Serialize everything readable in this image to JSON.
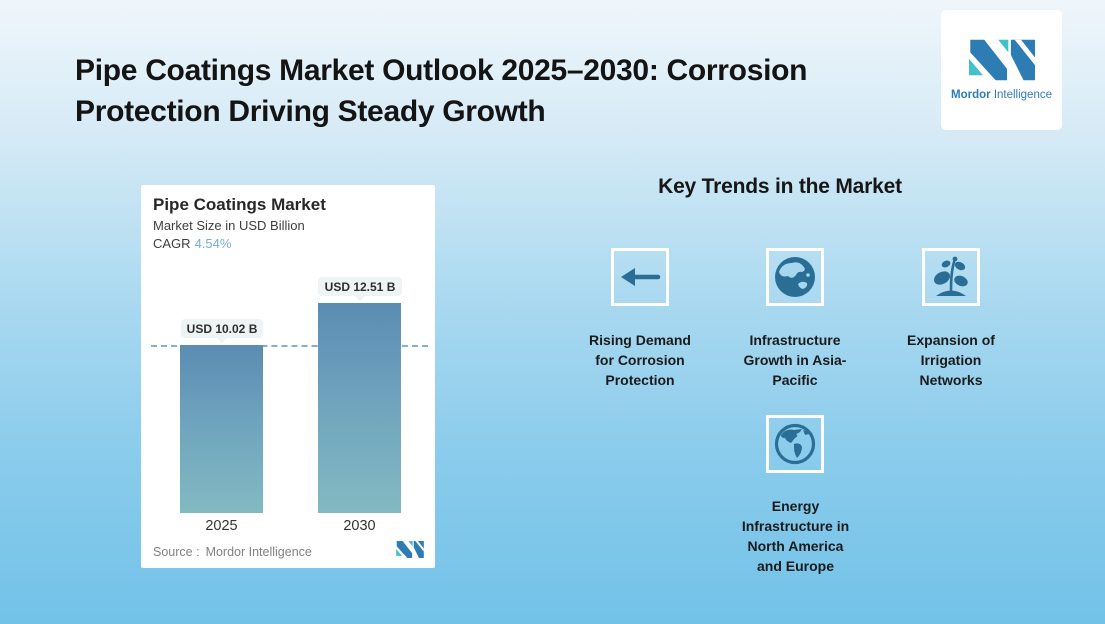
{
  "page": {
    "title": "Pipe Coatings Market Outlook 2025–2030: Corrosion Protection Driving Steady Growth"
  },
  "brand": {
    "name_bold": "Mordor",
    "name_regular": "Intelligence"
  },
  "chart_card": {
    "title": "Pipe Coatings Market",
    "subtitle": "Market Size in USD Billion",
    "cagr_label": "CAGR",
    "cagr_value": "4.54%",
    "source_label": "Source :",
    "source_value": "Mordor Intelligence"
  },
  "chart_data": {
    "type": "bar",
    "title": "Pipe Coatings Market",
    "subtitle": "Market Size in USD Billion",
    "unit": "USD Billion",
    "cagr_percent": 4.54,
    "categories": [
      "2025",
      "2030"
    ],
    "values": [
      10.02,
      12.51
    ],
    "value_labels": [
      "USD 10.02 B",
      "USD 12.51 B"
    ],
    "reference_line_value": 10.02,
    "ylim": [
      0,
      12.51
    ],
    "grid": "off",
    "legend": "none",
    "bar_gradient": [
      "#5b8cb3",
      "#82bac2"
    ]
  },
  "trends": {
    "heading": "Key Trends in the Market",
    "items": [
      {
        "icon": "arrow-left",
        "label": "Rising Demand for Corrosion Protection",
        "lines": [
          "Rising Demand",
          "for Corrosion",
          "Protection"
        ]
      },
      {
        "icon": "globe-asia-pacific",
        "label": "Infrastructure Growth in Asia-Pacific",
        "lines": [
          "Infrastructure",
          "Growth in Asia-",
          "Pacific"
        ]
      },
      {
        "icon": "plant-seedling",
        "label": "Expansion of Irrigation Networks",
        "lines": [
          "Expansion of",
          "Irrigation",
          "Networks"
        ]
      },
      {
        "icon": "globe-americas",
        "label": "Energy Infrastructure in North America and Europe",
        "lines": [
          "Energy",
          "Infrastructure in",
          "North America",
          "and Europe"
        ]
      }
    ]
  },
  "colors": {
    "brand_blue": "#2e7cb4",
    "brand_teal": "#41c1c9",
    "icon_blue": "#2a6e96",
    "cagr_blue": "#77aed4",
    "bg_top": "#eff6fb",
    "bg_bottom": "#72c2e8",
    "dashed_line": "#86aecd"
  }
}
